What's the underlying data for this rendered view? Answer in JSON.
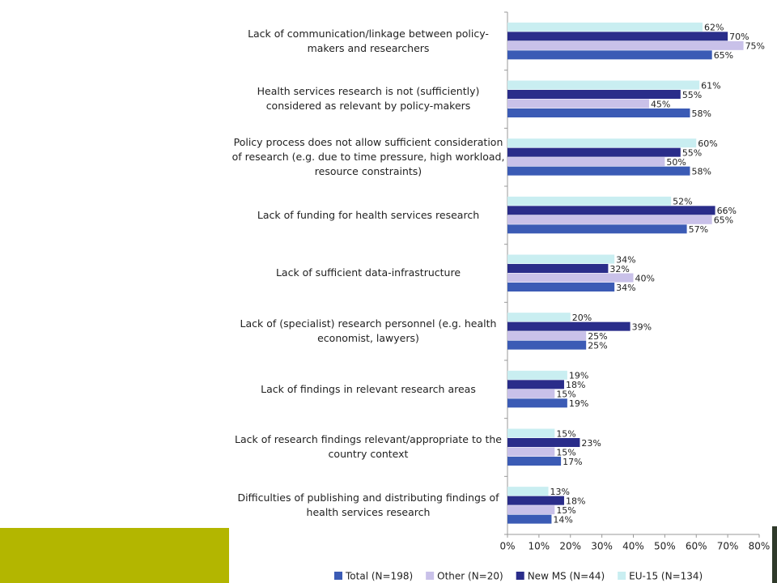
{
  "chart_data": {
    "type": "barh",
    "categories": [
      "Lack of communication/linkage between policy-makers and researchers",
      "Health services research is not (sufficiently) considered as relevant by policy-makers",
      "Policy process does not allow sufficient consideration of research (e.g. due to time pressure, high workload, resource constraints)",
      "Lack of funding for health services research",
      "Lack of sufficient data-infrastructure",
      "Lack of (specialist) research personnel (e.g. health economist, lawyers)",
      "Lack of findings in relevant research areas",
      "Lack of research findings relevant/appropriate to the country context",
      "Difficulties of publishing and distributing findings of health services research"
    ],
    "series": [
      {
        "name": "Total (N=198)",
        "color": "#3b5bb5",
        "values": [
          65,
          58,
          58,
          57,
          34,
          25,
          19,
          17,
          14
        ],
        "value_labels": [
          "65%",
          "58%",
          "58%",
          "57%",
          "34%",
          "25%",
          "19%",
          "17%",
          "14%"
        ]
      },
      {
        "name": "Other (N=20)",
        "color": "#c9c1e9",
        "values": [
          75,
          45,
          50,
          65,
          40,
          25,
          15,
          15,
          15
        ],
        "value_labels": [
          "75%",
          "45%",
          "50%",
          "65%",
          "40%",
          "25%",
          "15%",
          "15%",
          "15%"
        ]
      },
      {
        "name": "New MS (N=44)",
        "color": "#2a2d8a",
        "values": [
          70,
          55,
          55,
          66,
          32,
          39,
          18,
          23,
          18
        ],
        "value_labels": [
          "70%",
          "55%",
          "55%",
          "66%",
          "32%",
          "39%",
          "18%",
          "23%",
          "18%"
        ]
      },
      {
        "name": "EU-15 (N=134)",
        "color": "#c9eef1",
        "values": [
          62,
          61,
          60,
          52,
          34,
          20,
          19,
          15,
          13
        ],
        "value_labels": [
          "62%",
          "61%",
          "60%",
          "52%",
          "34%",
          "20%",
          "19%",
          "15%",
          "13%"
        ]
      }
    ],
    "xlim": [
      0,
      80
    ],
    "xticks": [
      {
        "value": 0,
        "label": "0%"
      },
      {
        "value": 10,
        "label": "10%"
      },
      {
        "value": 20,
        "label": "20%"
      },
      {
        "value": 30,
        "label": "30%"
      },
      {
        "value": 40,
        "label": "40%"
      },
      {
        "value": 50,
        "label": "50%"
      },
      {
        "value": 60,
        "label": "60%"
      },
      {
        "value": 70,
        "label": "70%"
      },
      {
        "value": 80,
        "label": "80%"
      }
    ],
    "legend": "bottom"
  }
}
